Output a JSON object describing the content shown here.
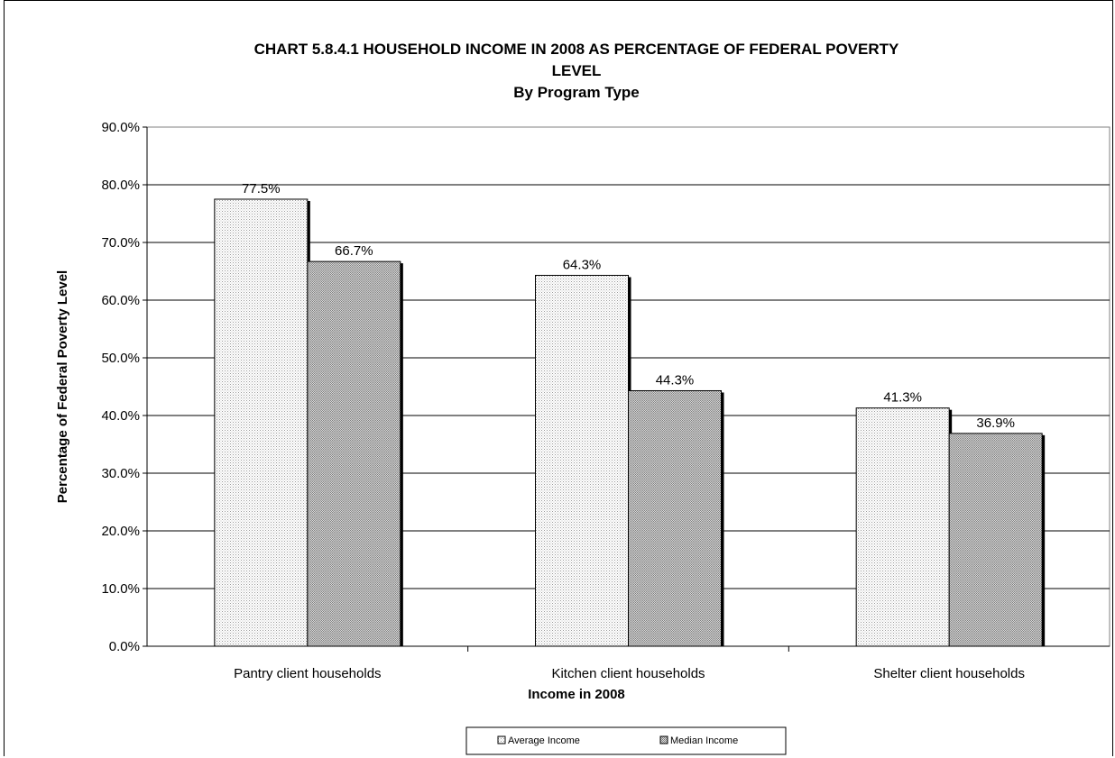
{
  "chart_data": {
    "type": "bar",
    "title_line1": "CHART 5.8.4.1     HOUSEHOLD INCOME IN 2008 AS PERCENTAGE OF FEDERAL POVERTY",
    "title_line2": "LEVEL",
    "subtitle": "By Program Type",
    "xlabel": "Income in 2008",
    "ylabel": "Percentage of Federal Poverty Level",
    "ylim": [
      0,
      90
    ],
    "yticks": [
      "0.0%",
      "10.0%",
      "20.0%",
      "30.0%",
      "40.0%",
      "50.0%",
      "60.0%",
      "70.0%",
      "80.0%",
      "90.0%"
    ],
    "grid": true,
    "legend_position": "bottom",
    "categories": [
      "Pantry client households",
      "Kitchen client households",
      "Shelter client households"
    ],
    "series": [
      {
        "name": "Average Income",
        "values": [
          77.5,
          64.3,
          41.3
        ],
        "labels": [
          "77.5%",
          "64.3%",
          "41.3%"
        ],
        "pattern": "light-dotted",
        "color": "#f2f2f2"
      },
      {
        "name": "Median Income",
        "values": [
          66.7,
          44.3,
          36.9
        ],
        "labels": [
          "66.7%",
          "44.3%",
          "36.9%"
        ],
        "pattern": "dark-dotted",
        "color": "#b4b4b4"
      }
    ]
  }
}
